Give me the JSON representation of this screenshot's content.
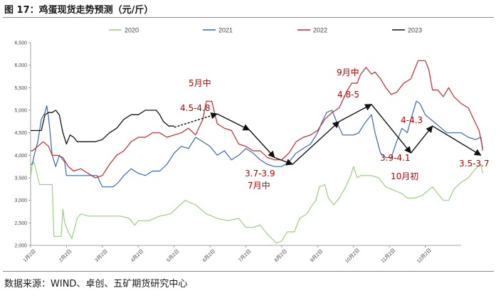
{
  "header": {
    "title": "图 17：鸡蛋现货走势预测（元/斤）"
  },
  "footer": {
    "source": "数据来源：WIND、卓创、五矿期货研究中心"
  },
  "colors": {
    "s2020": "#9bcf7e",
    "s2021": "#3a67ab",
    "s2022": "#c0282d",
    "s2023": "#111111",
    "annotation": "#c00000",
    "arrow": "#111111"
  },
  "chart_data": {
    "type": "line",
    "title": "",
    "xlabel": "",
    "ylabel": "",
    "ylim": [
      2000,
      6500
    ],
    "xlim": [
      0,
      12
    ],
    "yticks": [
      "2,000",
      "2,500",
      "3,000",
      "3,500",
      "4,000",
      "4,500",
      "5,000",
      "5,500",
      "6,000",
      "6,500"
    ],
    "xticks": [
      "1月2日",
      "2月2日",
      "3月2日",
      "4月2日",
      "5月2日",
      "6月2日",
      "7月2日",
      "8月2日",
      "9月2日",
      "10月2日",
      "11月2日",
      "12月2日"
    ],
    "legend": [
      "2020",
      "2021",
      "2022",
      "2023"
    ],
    "legend_position": "top",
    "grid": false,
    "series": [
      {
        "name": "2020",
        "points": [
          [
            0,
            3500
          ],
          [
            0.05,
            3850
          ],
          [
            0.1,
            3830
          ],
          [
            0.25,
            3350
          ],
          [
            0.6,
            3350
          ],
          [
            0.65,
            2200
          ],
          [
            0.85,
            2200
          ],
          [
            0.9,
            2800
          ],
          [
            0.95,
            2500
          ],
          [
            1.05,
            2300
          ],
          [
            1.15,
            2150
          ],
          [
            1.3,
            2600
          ],
          [
            1.4,
            2700
          ],
          [
            1.6,
            2650
          ],
          [
            2.0,
            2650
          ],
          [
            2.5,
            2650
          ],
          [
            2.75,
            2600
          ],
          [
            2.9,
            2450
          ],
          [
            3.0,
            2550
          ],
          [
            3.3,
            2550
          ],
          [
            3.6,
            2650
          ],
          [
            3.9,
            2700
          ],
          [
            4.1,
            2850
          ],
          [
            4.3,
            3000
          ],
          [
            4.6,
            2900
          ],
          [
            4.9,
            2700
          ],
          [
            5.2,
            2600
          ],
          [
            5.5,
            2550
          ],
          [
            5.8,
            2600
          ],
          [
            6.0,
            2400
          ],
          [
            6.2,
            2400
          ],
          [
            6.4,
            2450
          ],
          [
            6.6,
            2250
          ],
          [
            6.85,
            2050
          ],
          [
            7.0,
            2100
          ],
          [
            7.15,
            2300
          ],
          [
            7.35,
            2300
          ],
          [
            7.5,
            2600
          ],
          [
            7.7,
            2700
          ],
          [
            7.85,
            2900
          ],
          [
            7.95,
            3000
          ],
          [
            8.05,
            3300
          ],
          [
            8.2,
            3350
          ],
          [
            8.3,
            3050
          ],
          [
            8.45,
            2900
          ],
          [
            8.6,
            3050
          ],
          [
            8.75,
            3250
          ],
          [
            8.9,
            3500
          ],
          [
            9.0,
            3750
          ],
          [
            9.1,
            3500
          ],
          [
            9.2,
            3550
          ],
          [
            9.35,
            3550
          ],
          [
            9.5,
            3550
          ],
          [
            9.7,
            3500
          ],
          [
            9.9,
            3300
          ],
          [
            10.05,
            3250
          ],
          [
            10.2,
            3200
          ],
          [
            10.35,
            3150
          ],
          [
            10.5,
            3050
          ],
          [
            10.7,
            3050
          ],
          [
            10.9,
            3100
          ],
          [
            11.05,
            3200
          ],
          [
            11.2,
            3300
          ],
          [
            11.35,
            3150
          ],
          [
            11.5,
            3000
          ],
          [
            11.65,
            3000
          ],
          [
            11.8,
            3250
          ],
          [
            12.0,
            3400
          ],
          [
            12.2,
            3500
          ],
          [
            12.4,
            3700
          ],
          [
            12.55,
            3800
          ],
          [
            12.6,
            3600
          ]
        ]
      },
      {
        "name": "2021",
        "points": [
          [
            0,
            3800
          ],
          [
            0.05,
            3800
          ],
          [
            0.1,
            4000
          ],
          [
            0.2,
            4300
          ],
          [
            0.3,
            4800
          ],
          [
            0.4,
            4950
          ],
          [
            0.45,
            5100
          ],
          [
            0.5,
            4850
          ],
          [
            0.55,
            4450
          ],
          [
            0.6,
            4000
          ],
          [
            0.7,
            3750
          ],
          [
            0.8,
            4000
          ],
          [
            0.95,
            3850
          ],
          [
            1.0,
            3550
          ],
          [
            1.3,
            3550
          ],
          [
            1.6,
            3550
          ],
          [
            1.85,
            3550
          ],
          [
            2.0,
            3300
          ],
          [
            2.3,
            3300
          ],
          [
            2.45,
            3400
          ],
          [
            2.6,
            3550
          ],
          [
            2.8,
            3700
          ],
          [
            3.0,
            3600
          ],
          [
            3.2,
            3550
          ],
          [
            3.4,
            3650
          ],
          [
            3.6,
            3650
          ],
          [
            3.8,
            3800
          ],
          [
            4.0,
            4050
          ],
          [
            4.2,
            4200
          ],
          [
            4.4,
            4150
          ],
          [
            4.6,
            4400
          ],
          [
            4.8,
            4300
          ],
          [
            5.0,
            4200
          ],
          [
            5.2,
            4000
          ],
          [
            5.4,
            4100
          ],
          [
            5.6,
            3900
          ],
          [
            5.8,
            4000
          ],
          [
            6.0,
            4150
          ],
          [
            6.2,
            4050
          ],
          [
            6.4,
            3900
          ],
          [
            6.6,
            3800
          ],
          [
            6.8,
            3750
          ],
          [
            7.0,
            3750
          ],
          [
            7.2,
            3850
          ],
          [
            7.4,
            4050
          ],
          [
            7.6,
            4150
          ],
          [
            7.8,
            4250
          ],
          [
            8.0,
            4500
          ],
          [
            8.1,
            4700
          ],
          [
            8.25,
            4950
          ],
          [
            8.4,
            5000
          ],
          [
            8.55,
            4700
          ],
          [
            8.7,
            4450
          ],
          [
            8.85,
            4450
          ],
          [
            9.0,
            4450
          ],
          [
            9.15,
            4500
          ],
          [
            9.3,
            4700
          ],
          [
            9.5,
            4900
          ],
          [
            9.6,
            4500
          ],
          [
            9.75,
            4050
          ],
          [
            9.9,
            3950
          ],
          [
            10.05,
            3950
          ],
          [
            10.2,
            4300
          ],
          [
            10.35,
            4600
          ],
          [
            10.5,
            4500
          ],
          [
            10.6,
            4800
          ],
          [
            10.75,
            5200
          ],
          [
            10.85,
            5150
          ],
          [
            11.0,
            4900
          ],
          [
            11.15,
            4800
          ],
          [
            11.3,
            4700
          ],
          [
            11.45,
            4600
          ],
          [
            11.6,
            4500
          ],
          [
            11.8,
            4500
          ],
          [
            12.0,
            4500
          ],
          [
            12.2,
            4400
          ],
          [
            12.4,
            4350
          ],
          [
            12.55,
            4400
          ],
          [
            12.6,
            4100
          ]
        ]
      },
      {
        "name": "2022",
        "points": [
          [
            0,
            4100
          ],
          [
            0.05,
            4100
          ],
          [
            0.2,
            4200
          ],
          [
            0.35,
            4300
          ],
          [
            0.5,
            4200
          ],
          [
            0.6,
            4000
          ],
          [
            0.75,
            4000
          ],
          [
            0.9,
            3950
          ],
          [
            1.05,
            3750
          ],
          [
            1.2,
            3650
          ],
          [
            1.4,
            3700
          ],
          [
            1.6,
            3600
          ],
          [
            1.8,
            3500
          ],
          [
            2.0,
            3550
          ],
          [
            2.2,
            3800
          ],
          [
            2.4,
            4000
          ],
          [
            2.6,
            4100
          ],
          [
            2.8,
            4300
          ],
          [
            3.0,
            4400
          ],
          [
            3.2,
            4400
          ],
          [
            3.4,
            4500
          ],
          [
            3.6,
            4500
          ],
          [
            3.8,
            4400
          ],
          [
            4.0,
            4450
          ],
          [
            4.2,
            4500
          ],
          [
            4.4,
            4600
          ],
          [
            4.6,
            4450
          ],
          [
            4.8,
            4800
          ],
          [
            4.9,
            5200
          ],
          [
            5.05,
            5200
          ],
          [
            5.2,
            4700
          ],
          [
            5.4,
            4600
          ],
          [
            5.6,
            4550
          ],
          [
            5.8,
            4250
          ],
          [
            6.0,
            4200
          ],
          [
            6.2,
            4100
          ],
          [
            6.4,
            4100
          ],
          [
            6.6,
            3950
          ],
          [
            6.8,
            3900
          ],
          [
            7.0,
            3900
          ],
          [
            7.2,
            4050
          ],
          [
            7.4,
            4300
          ],
          [
            7.6,
            4400
          ],
          [
            7.8,
            4450
          ],
          [
            8.0,
            4550
          ],
          [
            8.2,
            4800
          ],
          [
            8.4,
            4950
          ],
          [
            8.6,
            5050
          ],
          [
            8.8,
            5400
          ],
          [
            8.95,
            5600
          ],
          [
            9.1,
            5600
          ],
          [
            9.2,
            5800
          ],
          [
            9.35,
            5950
          ],
          [
            9.5,
            5800
          ],
          [
            9.6,
            5850
          ],
          [
            9.75,
            5700
          ],
          [
            9.9,
            5500
          ],
          [
            10.05,
            5350
          ],
          [
            10.2,
            5400
          ],
          [
            10.4,
            5600
          ],
          [
            10.6,
            5700
          ],
          [
            10.8,
            6100
          ],
          [
            11.0,
            6100
          ],
          [
            11.1,
            5900
          ],
          [
            11.2,
            5450
          ],
          [
            11.35,
            5450
          ],
          [
            11.5,
            5300
          ],
          [
            11.65,
            5500
          ],
          [
            11.8,
            5300
          ],
          [
            12.0,
            5150
          ],
          [
            12.2,
            5050
          ],
          [
            12.35,
            4800
          ],
          [
            12.5,
            4550
          ],
          [
            12.6,
            4150
          ]
        ]
      },
      {
        "name": "2023",
        "points": [
          [
            0,
            4550
          ],
          [
            0.3,
            4550
          ],
          [
            0.4,
            4900
          ],
          [
            0.5,
            4950
          ],
          [
            0.6,
            4950
          ],
          [
            0.7,
            5000
          ],
          [
            0.8,
            4900
          ],
          [
            0.9,
            4500
          ],
          [
            1.0,
            4250
          ],
          [
            1.1,
            4450
          ],
          [
            1.2,
            4400
          ],
          [
            1.3,
            4300
          ],
          [
            1.5,
            4300
          ],
          [
            1.8,
            4300
          ],
          [
            2.0,
            4350
          ],
          [
            2.2,
            4500
          ],
          [
            2.4,
            4600
          ],
          [
            2.6,
            4800
          ],
          [
            2.8,
            4900
          ],
          [
            3.0,
            4900
          ],
          [
            3.2,
            5000
          ],
          [
            3.5,
            5000
          ],
          [
            3.6,
            4900
          ],
          [
            3.7,
            4750
          ],
          [
            3.85,
            4650
          ],
          [
            4.0,
            4650
          ]
        ]
      }
    ],
    "forecast_arrows": [
      [
        [
          4.0,
          4620
        ],
        [
          5.2,
          4920
        ]
      ],
      [
        [
          5.2,
          4920
        ],
        [
          6.1,
          4560
        ]
      ],
      [
        [
          6.1,
          4560
        ],
        [
          6.8,
          3950
        ]
      ],
      [
        [
          6.8,
          3950
        ],
        [
          7.3,
          3800
        ]
      ],
      [
        [
          7.3,
          3800
        ],
        [
          8.6,
          4750
        ]
      ],
      [
        [
          8.6,
          4750
        ],
        [
          9.5,
          5130
        ]
      ],
      [
        [
          9.5,
          5130
        ],
        [
          10.6,
          4050
        ]
      ],
      [
        [
          10.6,
          4050
        ],
        [
          11.2,
          4650
        ]
      ],
      [
        [
          11.2,
          4650
        ],
        [
          12.55,
          4000
        ]
      ]
    ],
    "annotations": [
      "5月中",
      "4.5-4.8",
      "3.7-3.9",
      "7月中",
      "9月中",
      "4.8-5",
      "3.9-4.1",
      "4-4.3",
      "10月初",
      "3.5-3.7"
    ]
  }
}
